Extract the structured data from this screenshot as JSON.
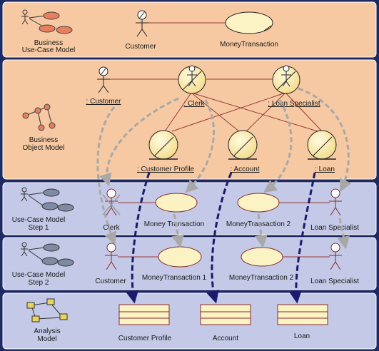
{
  "bands": [
    {
      "id": "business-use-case-model",
      "label_lines": [
        "Business",
        "Use-Case Model"
      ],
      "color": "#f6c9a2"
    },
    {
      "id": "business-object-model",
      "label_lines": [
        "Business",
        "Object Model"
      ],
      "color": "#f6c9a2"
    },
    {
      "id": "use-case-model-step-1",
      "label_lines": [
        "Use-Case Model",
        "Step 1"
      ],
      "color": "#c3c9e6"
    },
    {
      "id": "use-case-model-step-2",
      "label_lines": [
        "Use-Case Model",
        "Step 2"
      ],
      "color": "#c3c9e6"
    },
    {
      "id": "analysis-model",
      "label_lines": [
        "Analysis",
        "Model"
      ],
      "color": "#c3c9e6"
    }
  ],
  "business_use_case": {
    "actor": "Customer",
    "use_case": "MoneyTransaction"
  },
  "business_object": {
    "workers": [
      ": Customer",
      ": Clerk",
      ": Loan Specialist"
    ],
    "entities": [
      ": Customer Profile",
      ": Account",
      ": Loan"
    ]
  },
  "step1": {
    "actors": [
      "Clerk",
      "Loan Specialist"
    ],
    "use_cases": [
      "Money Transaction",
      "MoneyTransaction 2"
    ]
  },
  "step2": {
    "actors": [
      "Customer",
      "Loan Specialist"
    ],
    "use_cases": [
      "MoneyTransaction 1",
      "MoneyTransaction 2"
    ]
  },
  "analysis": {
    "classes": [
      "Customer Profile",
      "Account",
      "Loan"
    ]
  },
  "colors": {
    "frame": "#1d2a63",
    "peach_band": "#f6c9a2",
    "blue_band": "#c3c9e6",
    "association": "#9a3a3a",
    "trace_gray": "#a8a8a8",
    "trace_dark": "#1a1a6e",
    "ellipse_fill": "#fbf3c4",
    "class_fill": "#fbf3c4"
  }
}
